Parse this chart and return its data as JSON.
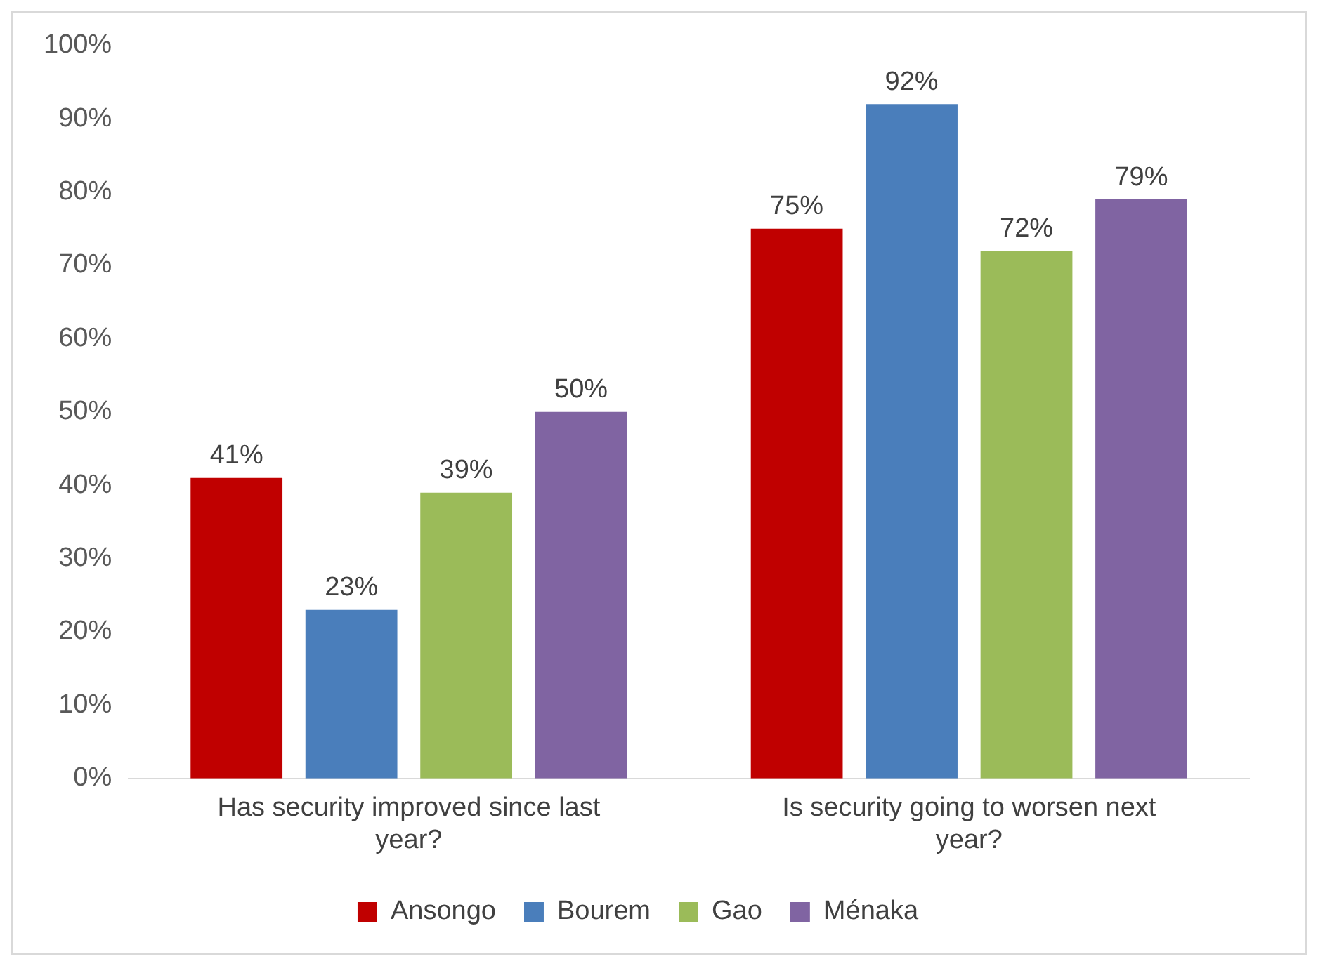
{
  "chart_data": {
    "type": "bar",
    "categories": [
      "Has security improved since last year?",
      "Is security going to worsen next year?"
    ],
    "series": [
      {
        "name": "Ansongo",
        "color": "#c00000",
        "values": [
          41,
          75
        ],
        "value_labels": [
          "41%",
          "75%"
        ]
      },
      {
        "name": "Bourem",
        "color": "#4a7ebb",
        "values": [
          23,
          92
        ],
        "value_labels": [
          "23%",
          "92%"
        ]
      },
      {
        "name": "Gao",
        "color": "#9bbb59",
        "values": [
          39,
          72
        ],
        "value_labels": [
          "39%",
          "72%"
        ]
      },
      {
        "name": "Ménaka",
        "color": "#8064a2",
        "values": [
          50,
          79
        ],
        "value_labels": [
          "50%",
          "79%"
        ]
      }
    ],
    "ylim": [
      0,
      100
    ],
    "yticks": [
      {
        "value": 0,
        "label": "0%"
      },
      {
        "value": 10,
        "label": "10%"
      },
      {
        "value": 20,
        "label": "20%"
      },
      {
        "value": 30,
        "label": "30%"
      },
      {
        "value": 40,
        "label": "40%"
      },
      {
        "value": 50,
        "label": "50%"
      },
      {
        "value": 60,
        "label": "60%"
      },
      {
        "value": 70,
        "label": "70%"
      },
      {
        "value": 80,
        "label": "80%"
      },
      {
        "value": 90,
        "label": "90%"
      },
      {
        "value": 100,
        "label": "100%"
      }
    ],
    "grid": false,
    "legend": "bottom"
  }
}
